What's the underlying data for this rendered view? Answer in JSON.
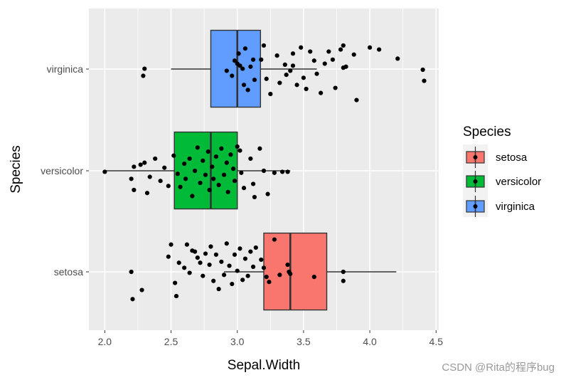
{
  "chart_data": {
    "type": "box",
    "orientation": "horizontal",
    "xlabel": "Sepal.Width",
    "ylabel": "Species",
    "xlim": [
      1.88,
      4.52
    ],
    "x_ticks": [
      2.0,
      2.5,
      3.0,
      3.5,
      4.0,
      4.5
    ],
    "x_tick_labels": [
      "2.0",
      "2.5",
      "3.0",
      "3.5",
      "4.0",
      "4.5"
    ],
    "categories": [
      "setosa",
      "versicolor",
      "virginica"
    ],
    "legend": {
      "title": "Species",
      "position": "right",
      "entries": [
        "setosa",
        "versicolor",
        "virginica"
      ]
    },
    "colors": {
      "setosa": "#F8766D",
      "versicolor": "#00BA38",
      "virginica": "#619CFF",
      "panel": "#EBEBEB",
      "grid": "#FFFFFF",
      "points": "#000000"
    },
    "grid": true,
    "boxes": [
      {
        "name": "setosa",
        "whisker_low": 2.9,
        "q1": 3.2,
        "median": 3.4,
        "q3": 3.675,
        "whisker_high": 4.2,
        "outliers": [
          2.3,
          4.4
        ]
      },
      {
        "name": "versicolor",
        "whisker_low": 2.0,
        "q1": 2.525,
        "median": 2.8,
        "q3": 3.0,
        "whisker_high": 3.4,
        "outliers": []
      },
      {
        "name": "virginica",
        "whisker_low": 2.5,
        "q1": 2.8,
        "median": 3.0,
        "q3": 3.175,
        "whisker_high": 3.6,
        "outliers": [
          2.2,
          3.8,
          3.8
        ]
      }
    ],
    "jitter_points": [
      {
        "x": 2.29,
        "y": 2.94
      },
      {
        "x": 2.3,
        "y": 3.01
      },
      {
        "x": 2.92,
        "y": 2.99
      },
      {
        "x": 2.96,
        "y": 2.94
      },
      {
        "x": 2.98,
        "y": 3.09
      },
      {
        "x": 3.0,
        "y": 3.06
      },
      {
        "x": 3.01,
        "y": 3.16
      },
      {
        "x": 3.02,
        "y": 3.04
      },
      {
        "x": 3.04,
        "y": 3.01
      },
      {
        "x": 3.05,
        "y": 2.85
      },
      {
        "x": 3.06,
        "y": 3.21
      },
      {
        "x": 3.08,
        "y": 2.8
      },
      {
        "x": 3.1,
        "y": 3.03
      },
      {
        "x": 3.12,
        "y": 3.1
      },
      {
        "x": 3.13,
        "y": 2.9
      },
      {
        "x": 3.18,
        "y": 3.1
      },
      {
        "x": 3.2,
        "y": 3.24
      },
      {
        "x": 3.22,
        "y": 2.91
      },
      {
        "x": 3.25,
        "y": 2.76
      },
      {
        "x": 3.3,
        "y": 3.14
      },
      {
        "x": 3.32,
        "y": 2.87
      },
      {
        "x": 3.36,
        "y": 3.05
      },
      {
        "x": 3.37,
        "y": 2.95
      },
      {
        "x": 3.4,
        "y": 2.99
      },
      {
        "x": 3.42,
        "y": 3.04
      },
      {
        "x": 3.42,
        "y": 3.16
      },
      {
        "x": 3.45,
        "y": 2.85
      },
      {
        "x": 3.48,
        "y": 3.22
      },
      {
        "x": 3.5,
        "y": 2.92
      },
      {
        "x": 3.52,
        "y": 2.81
      },
      {
        "x": 3.55,
        "y": 3.18
      },
      {
        "x": 3.58,
        "y": 3.09
      },
      {
        "x": 3.6,
        "y": 2.96
      },
      {
        "x": 3.63,
        "y": 2.77
      },
      {
        "x": 3.66,
        "y": 3.06
      },
      {
        "x": 3.69,
        "y": 3.18
      },
      {
        "x": 3.72,
        "y": 3.1
      },
      {
        "x": 3.74,
        "y": 2.82
      },
      {
        "x": 3.78,
        "y": 3.2
      },
      {
        "x": 3.8,
        "y": 3.24
      },
      {
        "x": 3.8,
        "y": 3.02
      },
      {
        "x": 3.82,
        "y": 3.03
      },
      {
        "x": 3.88,
        "y": 3.15
      },
      {
        "x": 3.9,
        "y": 2.7
      },
      {
        "x": 4.0,
        "y": 3.22
      },
      {
        "x": 4.07,
        "y": 3.2
      },
      {
        "x": 4.21,
        "y": 3.11
      },
      {
        "x": 4.4,
        "y": 3.0
      },
      {
        "x": 4.41,
        "y": 2.89
      },
      {
        "x": 2.0,
        "y": 1.99
      },
      {
        "x": 2.2,
        "y": 1.92
      },
      {
        "x": 2.22,
        "y": 2.04
      },
      {
        "x": 2.22,
        "y": 1.81
      },
      {
        "x": 2.27,
        "y": 2.06
      },
      {
        "x": 2.3,
        "y": 2.08
      },
      {
        "x": 2.32,
        "y": 1.78
      },
      {
        "x": 2.34,
        "y": 1.94
      },
      {
        "x": 2.38,
        "y": 2.12
      },
      {
        "x": 2.42,
        "y": 1.9
      },
      {
        "x": 2.45,
        "y": 2.03
      },
      {
        "x": 2.48,
        "y": 1.85
      },
      {
        "x": 2.52,
        "y": 2.15
      },
      {
        "x": 2.55,
        "y": 1.97
      },
      {
        "x": 2.57,
        "y": 1.84
      },
      {
        "x": 2.6,
        "y": 2.07
      },
      {
        "x": 2.61,
        "y": 1.92
      },
      {
        "x": 2.64,
        "y": 2.12
      },
      {
        "x": 2.66,
        "y": 1.75
      },
      {
        "x": 2.68,
        "y": 2.0
      },
      {
        "x": 2.7,
        "y": 2.23
      },
      {
        "x": 2.72,
        "y": 1.88
      },
      {
        "x": 2.74,
        "y": 2.1
      },
      {
        "x": 2.76,
        "y": 1.96
      },
      {
        "x": 2.78,
        "y": 2.19
      },
      {
        "x": 2.79,
        "y": 1.81
      },
      {
        "x": 2.81,
        "y": 2.04
      },
      {
        "x": 2.82,
        "y": 1.92
      },
      {
        "x": 2.84,
        "y": 2.14
      },
      {
        "x": 2.86,
        "y": 1.86
      },
      {
        "x": 2.88,
        "y": 2.22
      },
      {
        "x": 2.9,
        "y": 1.96
      },
      {
        "x": 2.92,
        "y": 2.08
      },
      {
        "x": 2.93,
        "y": 1.79
      },
      {
        "x": 2.95,
        "y": 2.16
      },
      {
        "x": 2.97,
        "y": 2.02
      },
      {
        "x": 2.98,
        "y": 1.9
      },
      {
        "x": 3.0,
        "y": 2.24
      },
      {
        "x": 3.02,
        "y": 2.2
      },
      {
        "x": 3.03,
        "y": 1.98
      },
      {
        "x": 3.05,
        "y": 1.83
      },
      {
        "x": 3.1,
        "y": 2.12
      },
      {
        "x": 3.12,
        "y": 1.87
      },
      {
        "x": 3.13,
        "y": 1.74
      },
      {
        "x": 3.17,
        "y": 2.22
      },
      {
        "x": 3.2,
        "y": 2.0
      },
      {
        "x": 3.23,
        "y": 1.77
      },
      {
        "x": 3.28,
        "y": 1.98
      },
      {
        "x": 3.34,
        "y": 1.99
      },
      {
        "x": 3.38,
        "y": 1.99
      },
      {
        "x": 2.2,
        "y": 1.0
      },
      {
        "x": 2.21,
        "y": 0.73
      },
      {
        "x": 2.28,
        "y": 0.82
      },
      {
        "x": 2.48,
        "y": 1.15
      },
      {
        "x": 2.5,
        "y": 1.27
      },
      {
        "x": 2.53,
        "y": 0.89
      },
      {
        "x": 2.54,
        "y": 0.76
      },
      {
        "x": 2.56,
        "y": 1.09
      },
      {
        "x": 2.6,
        "y": 1.04
      },
      {
        "x": 2.62,
        "y": 1.27
      },
      {
        "x": 2.64,
        "y": 0.99
      },
      {
        "x": 2.66,
        "y": 1.21
      },
      {
        "x": 2.68,
        "y": 1.2
      },
      {
        "x": 2.7,
        "y": 1.14
      },
      {
        "x": 2.72,
        "y": 1.09
      },
      {
        "x": 2.74,
        "y": 0.96
      },
      {
        "x": 2.76,
        "y": 1.18
      },
      {
        "x": 2.79,
        "y": 1.07
      },
      {
        "x": 2.8,
        "y": 1.25
      },
      {
        "x": 2.82,
        "y": 0.91
      },
      {
        "x": 2.84,
        "y": 1.17
      },
      {
        "x": 2.86,
        "y": 0.83
      },
      {
        "x": 2.88,
        "y": 1.1
      },
      {
        "x": 2.9,
        "y": 0.97
      },
      {
        "x": 2.92,
        "y": 1.28
      },
      {
        "x": 2.94,
        "y": 1.06
      },
      {
        "x": 2.96,
        "y": 0.88
      },
      {
        "x": 2.98,
        "y": 1.17
      },
      {
        "x": 3.0,
        "y": 1.01
      },
      {
        "x": 3.02,
        "y": 1.23
      },
      {
        "x": 3.04,
        "y": 0.92
      },
      {
        "x": 3.06,
        "y": 1.13
      },
      {
        "x": 3.08,
        "y": 0.96
      },
      {
        "x": 3.1,
        "y": 1.2
      },
      {
        "x": 3.12,
        "y": 1.05
      },
      {
        "x": 3.14,
        "y": 1.24
      },
      {
        "x": 3.18,
        "y": 1.12
      },
      {
        "x": 3.2,
        "y": 1.04
      },
      {
        "x": 3.22,
        "y": 0.95
      },
      {
        "x": 3.24,
        "y": 0.9
      },
      {
        "x": 3.28,
        "y": 1.32
      },
      {
        "x": 3.32,
        "y": 0.97
      },
      {
        "x": 3.38,
        "y": 1.07
      },
      {
        "x": 3.39,
        "y": 1.0
      },
      {
        "x": 3.4,
        "y": 0.98
      },
      {
        "x": 3.58,
        "y": 0.95
      },
      {
        "x": 3.8,
        "y": 1.0
      },
      {
        "x": 3.8,
        "y": 0.91
      }
    ]
  },
  "watermark": "CSDN @Rita的程序bug"
}
